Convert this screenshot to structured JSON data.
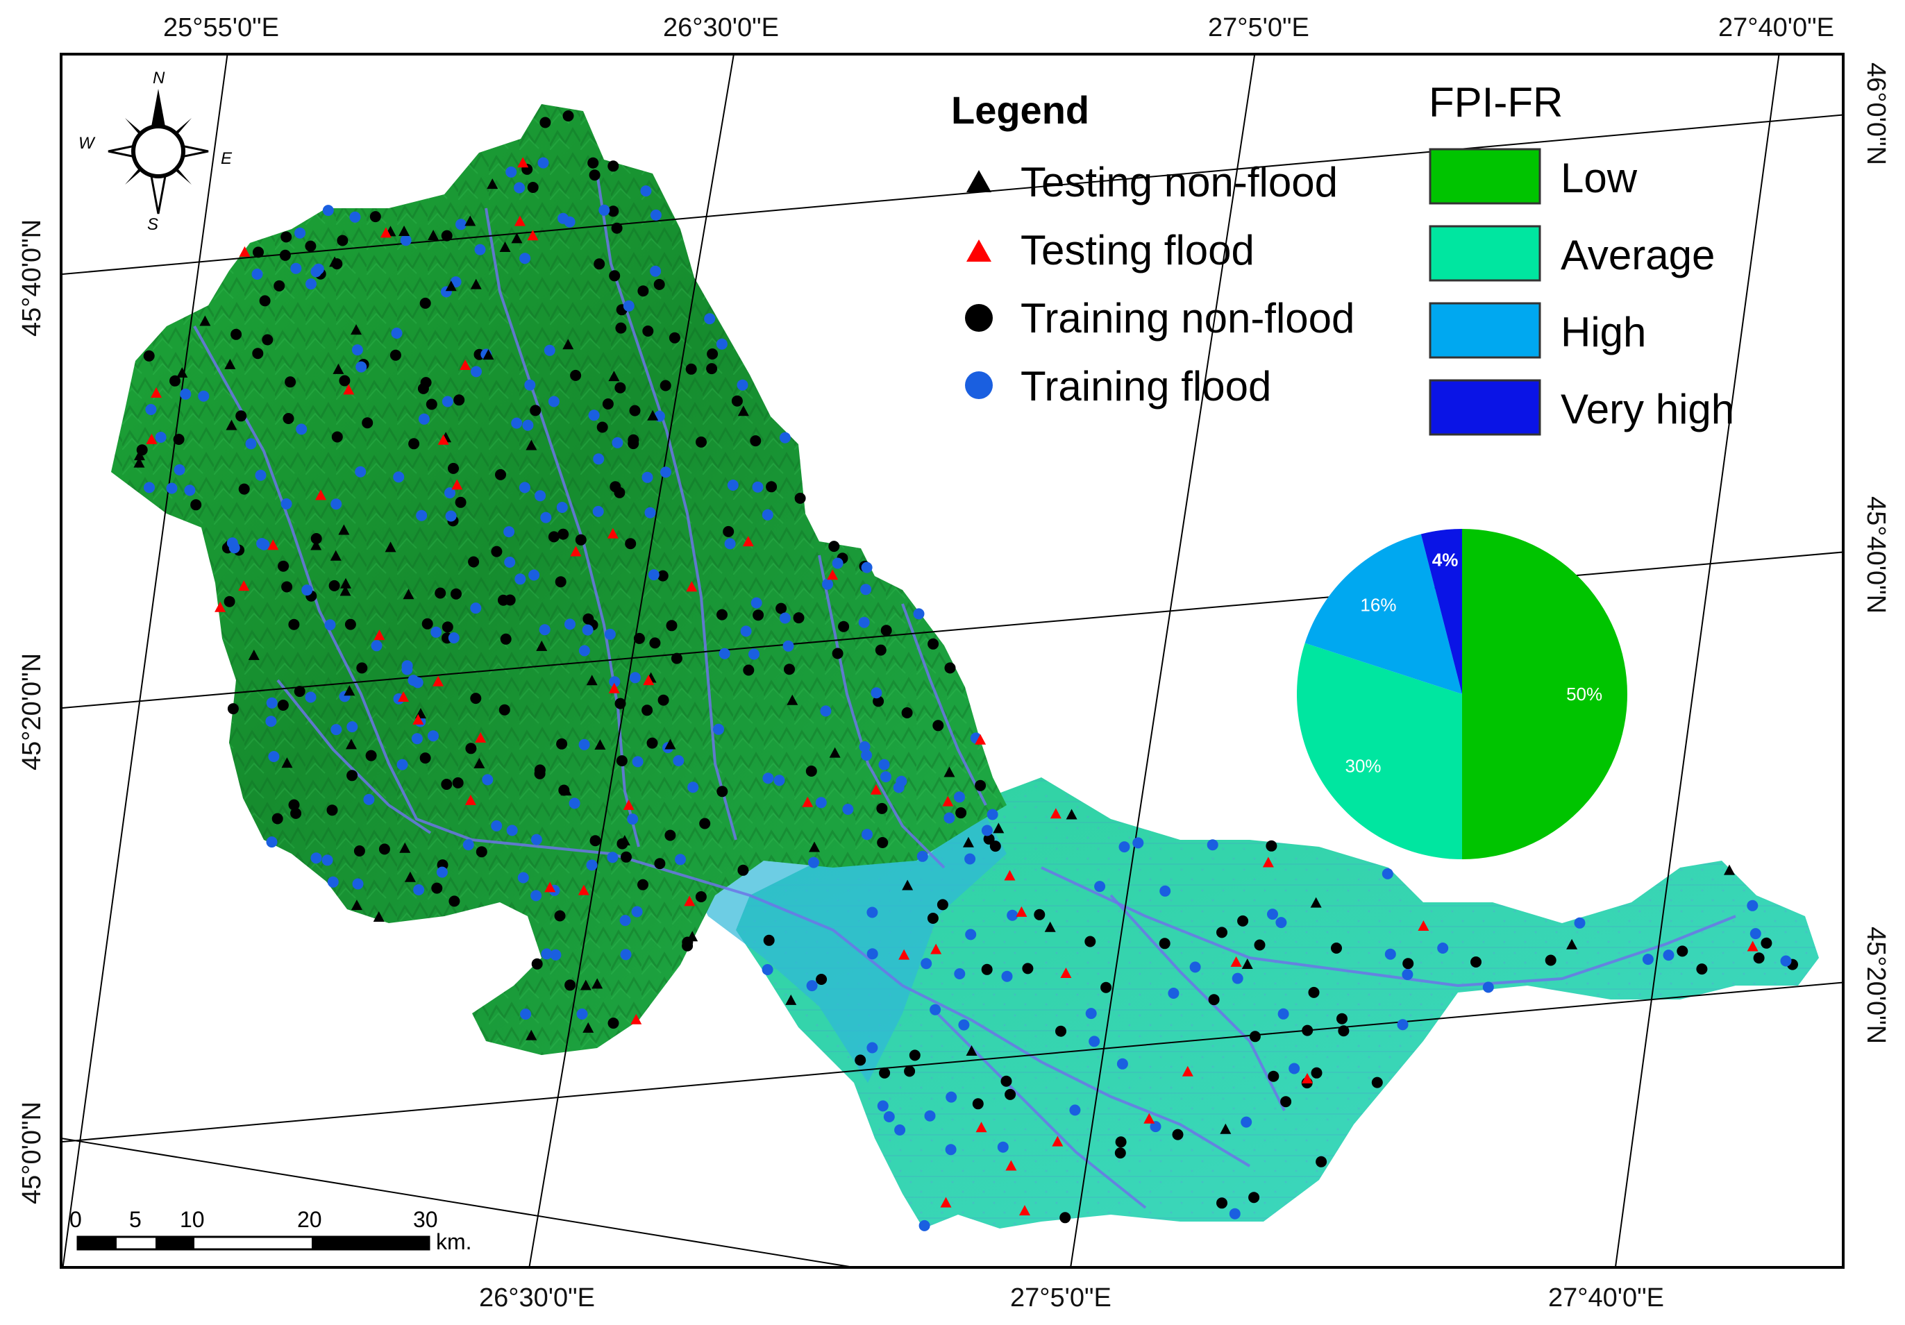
{
  "coordinates": {
    "top_longitudes": [
      "25°55'0\"E",
      "26°30'0\"E",
      "27°5'0\"E",
      "27°40'0\"E"
    ],
    "bottom_longitudes": [
      "26°30'0\"E",
      "27°5'0\"E",
      "27°40'0\"E"
    ],
    "left_latitudes": [
      "45°40'0\"N",
      "45°20'0\"N",
      "45°0'0\"N"
    ],
    "right_latitudes": [
      "46°0'0\"N",
      "45°40'0\"N",
      "45°20'0\"N"
    ]
  },
  "compass": {
    "north": "N",
    "south": "S",
    "east": "E",
    "west": "W"
  },
  "legend": {
    "title": "Legend",
    "items": [
      {
        "label": "Testing non-flood",
        "symbol": "triangle",
        "color": "#000000"
      },
      {
        "label": "Testing flood",
        "symbol": "triangle",
        "color": "#ff0000"
      },
      {
        "label": "Training non-flood",
        "symbol": "circle",
        "color": "#000000"
      },
      {
        "label": "Training flood",
        "symbol": "circle",
        "color": "#1a5fe0"
      }
    ]
  },
  "fpi_legend": {
    "title": "FPI-FR",
    "classes": [
      {
        "label": "Low",
        "color": "#00c400"
      },
      {
        "label": "Average",
        "color": "#00e6a0"
      },
      {
        "label": "High",
        "color": "#00a8f0"
      },
      {
        "label": "Very high",
        "color": "#0a14e6"
      }
    ]
  },
  "chart_data": {
    "type": "pie",
    "slices": [
      {
        "class": "Low",
        "value": 50,
        "label": "50%",
        "color": "#00c400"
      },
      {
        "class": "Average",
        "value": 30,
        "label": "30%",
        "color": "#00e6a0"
      },
      {
        "class": "High",
        "value": 16,
        "label": "16%",
        "color": "#00a8f0"
      },
      {
        "class": "Very high",
        "value": 4,
        "label": "4%",
        "color": "#0a14e6"
      }
    ]
  },
  "scale_bar": {
    "ticks": [
      "0",
      "5",
      "10",
      "20",
      "30"
    ],
    "unit": "km."
  }
}
